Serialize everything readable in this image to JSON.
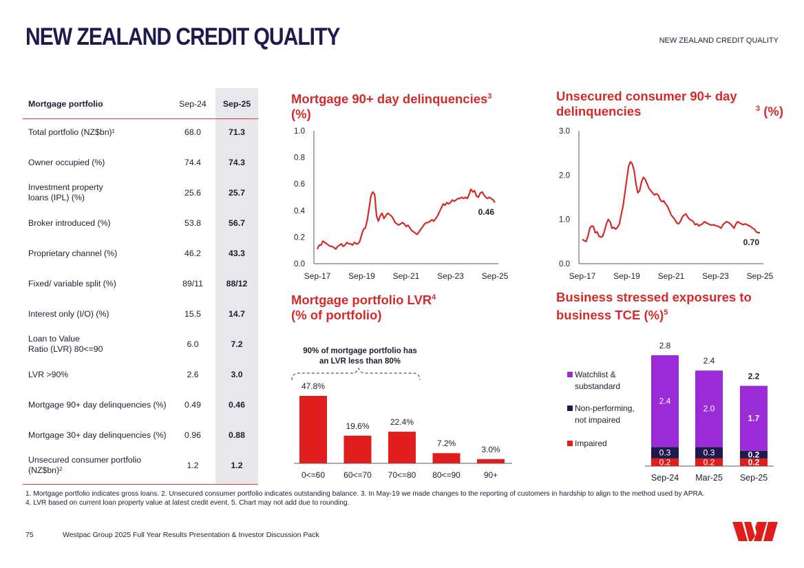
{
  "header": {
    "title": "NEW ZEALAND CREDIT QUALITY",
    "tag": "NEW ZEALAND CREDIT QUALITY"
  },
  "table": {
    "headers": [
      "Mortgage portfolio",
      "Sep-24",
      "Sep-25"
    ],
    "rows": [
      {
        "label": "Total portfolio (NZ$bn)¹",
        "sep24": "68.0",
        "sep25": "71.3"
      },
      {
        "label": "Owner occupied (%)",
        "sep24": "74.4",
        "sep25": "74.3"
      },
      {
        "label": "Investment property\nloans (IPL) (%)",
        "sep24": "25.6",
        "sep25": "25.7"
      },
      {
        "label": "Broker introduced (%)",
        "sep24": "53.8",
        "sep25": "56.7"
      },
      {
        "label": "Proprietary channel (%)",
        "sep24": "46.2",
        "sep25": "43.3"
      },
      {
        "label": "Fixed/ variable split (%)",
        "sep24": "89/11",
        "sep25": "88/12"
      },
      {
        "label": "Interest only (I/O) (%)",
        "sep24": "15.5",
        "sep25": "14.7"
      },
      {
        "label": "Loan to Value\nRatio (LVR) 80<=90",
        "sep24": "6.0",
        "sep25": "7.2"
      },
      {
        "label": "LVR >90%",
        "sep24": "2.6",
        "sep25": "3.0"
      },
      {
        "label": "Mortgage 90+ day delinquencies (%)",
        "sep24": "0.49",
        "sep25": "0.46"
      },
      {
        "label": "Mortgage 30+ day delinquencies (%)",
        "sep24": "0.96",
        "sep25": "0.88"
      },
      {
        "label": "Unsecured consumer portfolio\n(NZ$bn)²",
        "sep24": "1.2",
        "sep25": "1.2"
      }
    ]
  },
  "chart_data": [
    {
      "type": "line",
      "title": "Mortgage 90+ day delinquencies",
      "title_sup": "3",
      "title_suffix": "(%)",
      "x_ticks": [
        "Sep-17",
        "Sep-19",
        "Sep-21",
        "Sep-23",
        "Sep-25"
      ],
      "y_ticks": [
        "0.0",
        "0.2",
        "0.4",
        "0.6",
        "0.8",
        "1.0"
      ],
      "ylim": [
        0,
        1.0
      ],
      "end_label": "0.46",
      "color": "#d42a2a",
      "x": [
        "2017-09",
        "2017-10",
        "2017-11",
        "2017-12",
        "2018-01",
        "2018-02",
        "2018-03",
        "2018-04",
        "2018-05",
        "2018-06",
        "2018-07",
        "2018-08",
        "2018-09",
        "2018-10",
        "2018-11",
        "2018-12",
        "2019-01",
        "2019-02",
        "2019-03",
        "2019-04",
        "2019-05",
        "2019-06",
        "2019-07",
        "2019-08",
        "2019-09",
        "2019-10",
        "2019-11",
        "2019-12",
        "2020-01",
        "2020-02",
        "2020-03",
        "2020-04",
        "2020-05",
        "2020-06",
        "2020-07",
        "2020-08",
        "2020-09",
        "2020-10",
        "2020-11",
        "2020-12",
        "2021-01",
        "2021-02",
        "2021-03",
        "2021-04",
        "2021-05",
        "2021-06",
        "2021-07",
        "2021-08",
        "2021-09",
        "2021-10",
        "2021-11",
        "2021-12",
        "2022-01",
        "2022-02",
        "2022-03",
        "2022-04",
        "2022-05",
        "2022-06",
        "2022-07",
        "2022-08",
        "2022-09",
        "2022-10",
        "2022-11",
        "2022-12",
        "2023-01",
        "2023-02",
        "2023-03",
        "2023-04",
        "2023-05",
        "2023-06",
        "2023-07",
        "2023-08",
        "2023-09",
        "2023-10",
        "2023-11",
        "2023-12",
        "2024-01",
        "2024-02",
        "2024-03",
        "2024-04",
        "2024-05",
        "2024-06",
        "2024-07",
        "2024-08",
        "2024-09",
        "2024-10",
        "2024-11",
        "2024-12",
        "2025-01",
        "2025-02",
        "2025-03",
        "2025-04",
        "2025-05",
        "2025-06",
        "2025-07",
        "2025-08",
        "2025-09"
      ],
      "values": [
        0.11,
        0.14,
        0.14,
        0.17,
        0.16,
        0.15,
        0.14,
        0.13,
        0.13,
        0.12,
        0.11,
        0.13,
        0.14,
        0.15,
        0.13,
        0.14,
        0.16,
        0.15,
        0.15,
        0.14,
        0.16,
        0.15,
        0.15,
        0.17,
        0.22,
        0.26,
        0.27,
        0.33,
        0.42,
        0.51,
        0.54,
        0.52,
        0.36,
        0.32,
        0.36,
        0.38,
        0.34,
        0.36,
        0.38,
        0.37,
        0.36,
        0.34,
        0.31,
        0.3,
        0.29,
        0.3,
        0.31,
        0.3,
        0.28,
        0.29,
        0.27,
        0.25,
        0.24,
        0.23,
        0.22,
        0.24,
        0.26,
        0.28,
        0.3,
        0.31,
        0.31,
        0.32,
        0.33,
        0.32,
        0.34,
        0.36,
        0.39,
        0.42,
        0.45,
        0.44,
        0.46,
        0.45,
        0.46,
        0.48,
        0.47,
        0.48,
        0.49,
        0.49,
        0.5,
        0.49,
        0.5,
        0.49,
        0.52,
        0.56,
        0.54,
        0.55,
        0.51,
        0.5,
        0.53,
        0.54,
        0.52,
        0.5,
        0.49,
        0.5,
        0.49,
        0.48,
        0.46
      ]
    },
    {
      "type": "line",
      "title": "Unsecured consumer 90+ day delinquencies",
      "title_sup": "3",
      "title_suffix": "(%)",
      "x_ticks": [
        "Sep-17",
        "Sep-19",
        "Sep-21",
        "Sep-23",
        "Sep-25"
      ],
      "y_ticks": [
        "0.0",
        "1.0",
        "2.0",
        "3.0"
      ],
      "ylim": [
        0,
        3.0
      ],
      "end_label": "0.70",
      "color": "#d42a2a",
      "x": [
        "2017-09",
        "2017-10",
        "2017-11",
        "2017-12",
        "2018-01",
        "2018-02",
        "2018-03",
        "2018-04",
        "2018-05",
        "2018-06",
        "2018-07",
        "2018-08",
        "2018-09",
        "2018-10",
        "2018-11",
        "2018-12",
        "2019-01",
        "2019-02",
        "2019-03",
        "2019-04",
        "2019-05",
        "2019-06",
        "2019-07",
        "2019-08",
        "2019-09",
        "2019-10",
        "2019-11",
        "2019-12",
        "2020-01",
        "2020-02",
        "2020-03",
        "2020-04",
        "2020-05",
        "2020-06",
        "2020-07",
        "2020-08",
        "2020-09",
        "2020-10",
        "2020-11",
        "2020-12",
        "2021-01",
        "2021-02",
        "2021-03",
        "2021-04",
        "2021-05",
        "2021-06",
        "2021-07",
        "2021-08",
        "2021-09",
        "2021-10",
        "2021-11",
        "2021-12",
        "2022-01",
        "2022-02",
        "2022-03",
        "2022-04",
        "2022-05",
        "2022-06",
        "2022-07",
        "2022-08",
        "2022-09",
        "2022-10",
        "2022-11",
        "2022-12",
        "2023-01",
        "2023-02",
        "2023-03",
        "2023-04",
        "2023-05",
        "2023-06",
        "2023-07",
        "2023-08",
        "2023-09",
        "2023-10",
        "2023-11",
        "2023-12",
        "2024-01",
        "2024-02",
        "2024-03",
        "2024-04",
        "2024-05",
        "2024-06",
        "2024-07",
        "2024-08",
        "2024-09",
        "2024-10",
        "2024-11",
        "2024-12",
        "2025-01",
        "2025-02",
        "2025-03",
        "2025-04",
        "2025-05",
        "2025-06",
        "2025-07",
        "2025-08",
        "2025-09"
      ],
      "values": [
        0.55,
        0.52,
        0.5,
        0.62,
        0.8,
        0.85,
        0.84,
        0.7,
        0.72,
        0.62,
        0.6,
        0.62,
        0.75,
        0.9,
        1.0,
        0.95,
        0.8,
        0.82,
        0.78,
        0.82,
        0.9,
        1.1,
        1.3,
        1.6,
        1.9,
        2.2,
        2.3,
        2.25,
        2.1,
        1.8,
        1.6,
        1.65,
        1.85,
        1.95,
        1.9,
        1.8,
        1.7,
        1.65,
        1.6,
        1.55,
        1.58,
        1.55,
        1.45,
        1.4,
        1.42,
        1.35,
        1.3,
        1.2,
        1.1,
        1.05,
        1.0,
        0.92,
        0.9,
        0.95,
        1.05,
        1.1,
        1.12,
        1.05,
        1.0,
        0.98,
        0.95,
        0.88,
        0.9,
        0.85,
        0.88,
        0.9,
        0.95,
        0.92,
        0.9,
        0.88,
        0.87,
        0.88,
        0.86,
        0.85,
        0.83,
        0.8,
        0.88,
        0.92,
        0.95,
        0.93,
        0.9,
        0.85,
        0.8,
        0.9,
        0.95,
        0.92,
        0.9,
        0.88,
        0.9,
        0.88,
        0.86,
        0.84,
        0.8,
        0.78,
        0.72,
        0.7,
        0.7
      ]
    },
    {
      "type": "bar",
      "title": "Mortgage portfolio LVR",
      "title_sup": "4",
      "title_suffix": "(% of portfolio)",
      "categories": [
        "0<=60",
        "60<=70",
        "70<=80",
        "80<=90",
        "90+"
      ],
      "values": [
        47.8,
        19.6,
        22.4,
        7.2,
        3.0
      ],
      "labels": [
        "47.8%",
        "19.6%",
        "22.4%",
        "7.2%",
        "3.0%"
      ],
      "annotation": "90% of mortgage portfolio has\nan LVR less than 80%",
      "color": "#e01d1d"
    },
    {
      "type": "bar",
      "stacked": true,
      "title": "Business stressed exposures to",
      "title_line2": "business TCE (%)",
      "title_sup": "5",
      "categories": [
        "Sep-24",
        "Mar-25",
        "Sep-25"
      ],
      "totals": [
        "2.8",
        "2.4",
        "2.2"
      ],
      "series": [
        {
          "name": "Impaired",
          "values": [
            0.2,
            0.2,
            0.2
          ],
          "color": "#e01d1d"
        },
        {
          "name": "Non-performing,\nnot impaired",
          "values": [
            0.3,
            0.3,
            0.2
          ],
          "color": "#1f1a4d"
        },
        {
          "name": "Watchlist &\nsubstandard",
          "values": [
            2.4,
            2.0,
            1.7
          ],
          "color": "#9a2bd6"
        }
      ]
    }
  ],
  "footnotes": "1. Mortgage portfolio indicates gross loans. 2. Unsecured consumer portfolio indicates outstanding balance. 3. In May-19 we made changes to the reporting of customers in hardship to align to the method used by APRA.\n4. LVR based on current loan property value at latest credit event. 5. Chart may not add due to rounding.",
  "footer": {
    "page": "75",
    "text": "Westpac Group 2025 Full Year Results Presentation & Investor Discussion Pack"
  },
  "colors": {
    "brand_red": "#d42a2a",
    "navy": "#1f1a4d",
    "purple": "#9a2bd6"
  }
}
